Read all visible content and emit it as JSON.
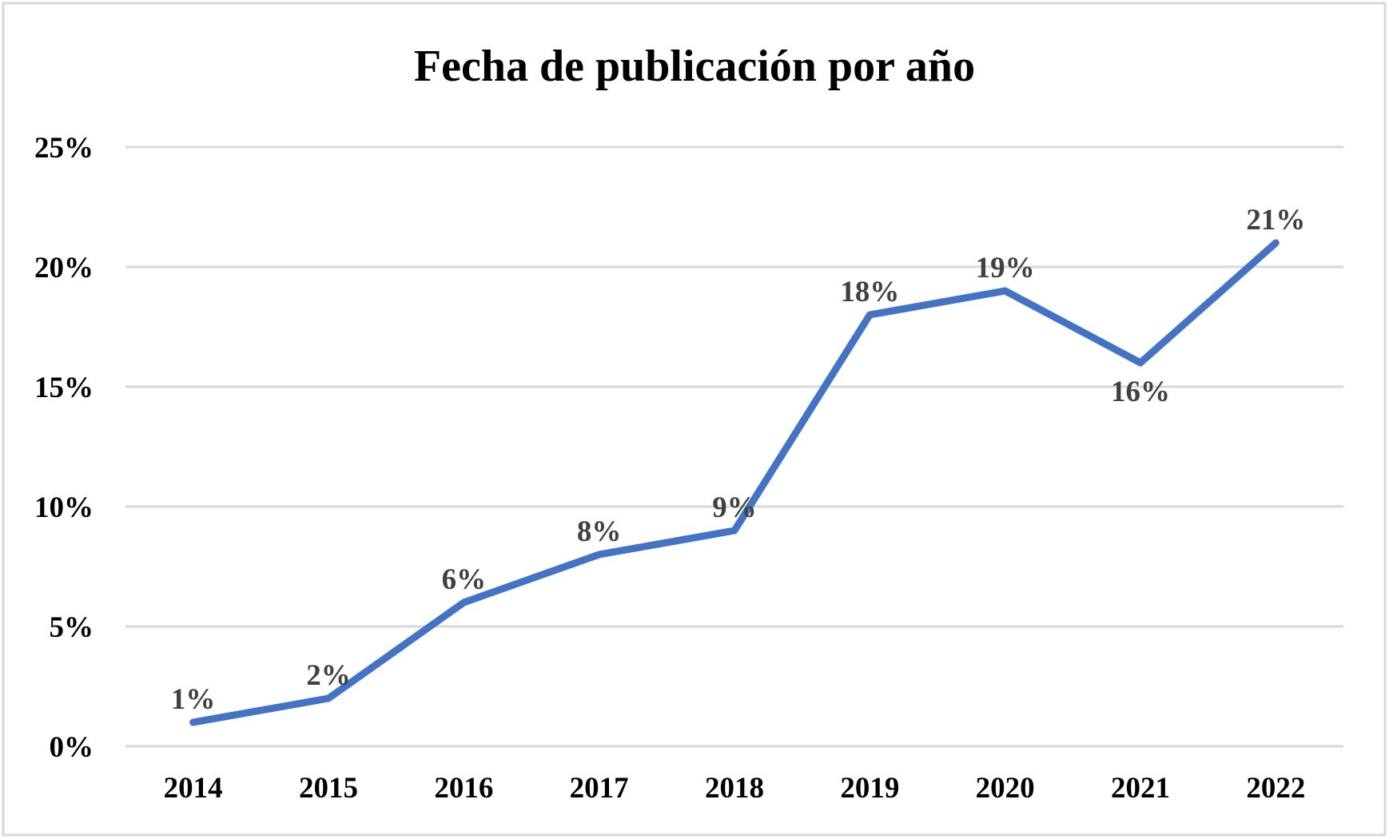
{
  "chart_data": {
    "type": "line",
    "title": "Fecha de publicación por año",
    "xlabel": "",
    "ylabel": "",
    "categories": [
      "2014",
      "2015",
      "2016",
      "2017",
      "2018",
      "2019",
      "2020",
      "2021",
      "2022"
    ],
    "values": [
      1,
      2,
      6,
      8,
      9,
      18,
      19,
      16,
      21
    ],
    "data_labels": [
      "1%",
      "2%",
      "6%",
      "8%",
      "9%",
      "18%",
      "19%",
      "16%",
      "21%"
    ],
    "ylim": [
      0,
      25
    ],
    "yticks": [
      0,
      5,
      10,
      15,
      20,
      25
    ],
    "ytick_labels": [
      "0%",
      "5%",
      "10%",
      "15%",
      "20%",
      "25%"
    ],
    "grid": true,
    "legend": "none",
    "colors": {
      "line": "#4472C4",
      "grid": "#D9D9D9",
      "label": "#404040",
      "border": "#D9D9D9"
    }
  }
}
